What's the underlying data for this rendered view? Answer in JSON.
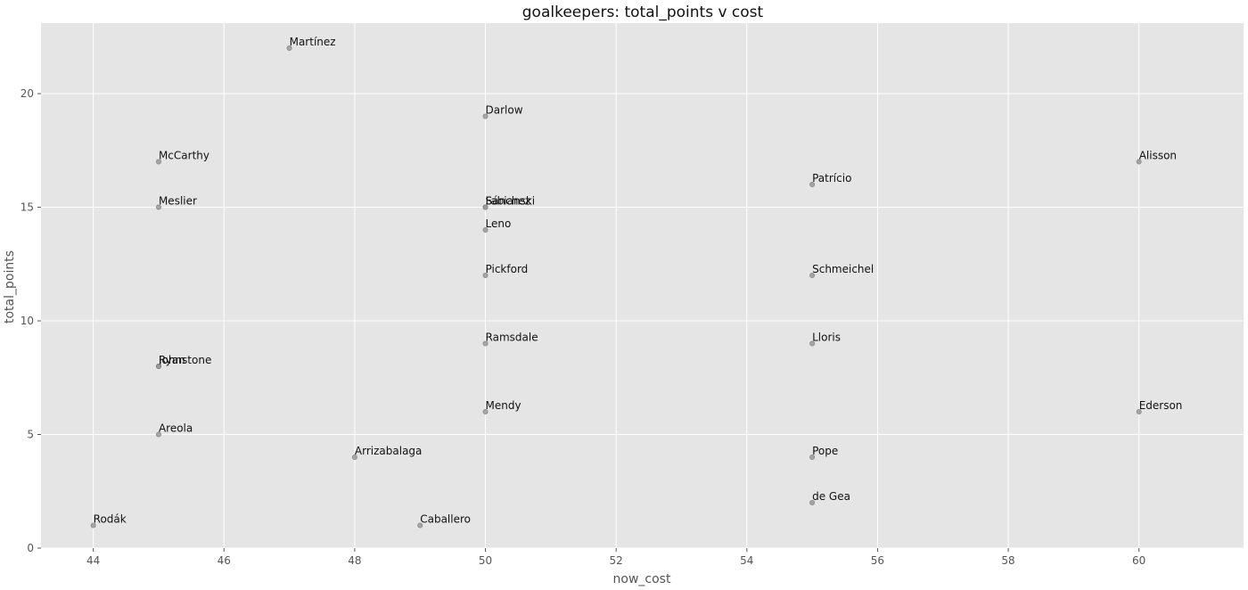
{
  "chart_data": {
    "type": "scatter",
    "title": "goalkeepers: total_points v cost",
    "xlabel": "now_cost",
    "ylabel": "total_points",
    "xlim": [
      43.2,
      61.6
    ],
    "ylim": [
      0,
      23.1
    ],
    "xticks": [
      44,
      46,
      48,
      50,
      52,
      54,
      56,
      58,
      60
    ],
    "yticks": [
      0,
      5,
      10,
      15,
      20
    ],
    "grid": true,
    "colors": {
      "background": "#e5e5e5",
      "grid": "#ffffff",
      "point": "#9a9a9a"
    },
    "points": [
      {
        "name": "Martínez",
        "x": 47,
        "y": 22
      },
      {
        "name": "Darlow",
        "x": 50,
        "y": 19
      },
      {
        "name": "McCarthy",
        "x": 45,
        "y": 17
      },
      {
        "name": "Alisson",
        "x": 60,
        "y": 17
      },
      {
        "name": "Patrício",
        "x": 55,
        "y": 16
      },
      {
        "name": "Meslier",
        "x": 45,
        "y": 15
      },
      {
        "name": "Fabianski",
        "x": 50,
        "y": 15
      },
      {
        "name": "Sánchez",
        "x": 50,
        "y": 15
      },
      {
        "name": "Leno",
        "x": 50,
        "y": 14
      },
      {
        "name": "Pickford",
        "x": 50,
        "y": 12
      },
      {
        "name": "Schmeichel",
        "x": 55,
        "y": 12
      },
      {
        "name": "Ramsdale",
        "x": 50,
        "y": 9
      },
      {
        "name": "Lloris",
        "x": 55,
        "y": 9
      },
      {
        "name": "Johnstone",
        "x": 45,
        "y": 8
      },
      {
        "name": "Ryan",
        "x": 45,
        "y": 8
      },
      {
        "name": "Mendy",
        "x": 50,
        "y": 6
      },
      {
        "name": "Ederson",
        "x": 60,
        "y": 6
      },
      {
        "name": "Areola",
        "x": 45,
        "y": 5
      },
      {
        "name": "Arrizabalaga",
        "x": 48,
        "y": 4
      },
      {
        "name": "Pope",
        "x": 55,
        "y": 4
      },
      {
        "name": "de Gea",
        "x": 55,
        "y": 2
      },
      {
        "name": "Rodák",
        "x": 44,
        "y": 1
      },
      {
        "name": "Caballero",
        "x": 49,
        "y": 1
      }
    ]
  }
}
